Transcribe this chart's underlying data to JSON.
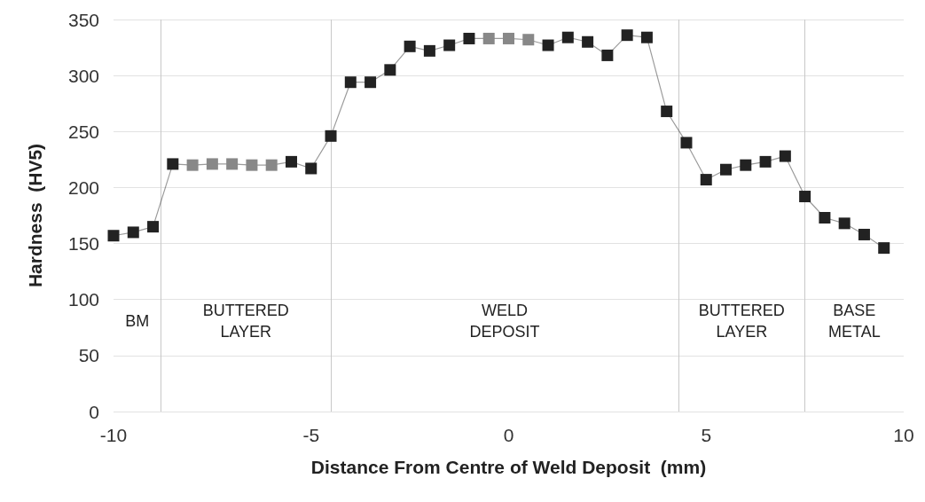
{
  "chart_data": {
    "type": "line",
    "xlabel": "Distance From Centre of Weld Deposit  (mm)",
    "ylabel": "Hardness  (HV5)",
    "x": [
      -10,
      -9.5,
      -9,
      -8.5,
      -8,
      -7.5,
      -7,
      -6.5,
      -6,
      -5.5,
      -5,
      -4.5,
      -4,
      -3.5,
      -3,
      -2.5,
      -2,
      -1.5,
      -1,
      -0.5,
      0,
      0.5,
      1,
      1.5,
      2,
      2.5,
      3,
      3.5,
      4,
      4.5,
      5,
      5.5,
      6,
      6.5,
      7,
      7.5,
      8,
      8.5,
      9,
      9.5
    ],
    "series": [
      {
        "color": "#222222",
        "colors": [
          "#222222",
          "#222222",
          "#222222",
          "#222222",
          "#888888",
          "#888888",
          "#888888",
          "#888888",
          "#888888",
          "#222222",
          "#222222",
          "#222222",
          "#222222",
          "#222222",
          "#222222",
          "#222222",
          "#222222",
          "#222222",
          "#222222",
          "#888888",
          "#888888",
          "#888888",
          "#222222",
          "#222222",
          "#222222",
          "#222222",
          "#222222",
          "#222222",
          "#222222",
          "#222222",
          "#222222",
          "#222222",
          "#222222",
          "#222222",
          "#222222",
          "#222222",
          "#222222",
          "#222222",
          "#222222",
          "#222222"
        ],
        "values": [
          157,
          160,
          165,
          221,
          220,
          221,
          221,
          220,
          220,
          223,
          217,
          246,
          294,
          294,
          305,
          326,
          322,
          327,
          333,
          333,
          333,
          332,
          327,
          334,
          330,
          318,
          336,
          334,
          268,
          240,
          207,
          216,
          220,
          223,
          228,
          192,
          173,
          168,
          158,
          146
        ]
      }
    ],
    "xlim": [
      -10,
      10
    ],
    "xticks": [
      -10,
      -5,
      0,
      5,
      10
    ],
    "ylim": [
      0,
      350
    ],
    "yticks": [
      0,
      50,
      100,
      150,
      200,
      250,
      300,
      350
    ],
    "grid": "y",
    "marker": "square",
    "line_style": "solid",
    "ref_lines": [
      {
        "axis": "x",
        "value": -8.8
      },
      {
        "axis": "x",
        "value": -4.5
      },
      {
        "axis": "x",
        "value": 4.3
      },
      {
        "axis": "x",
        "value": 7.5
      }
    ],
    "annotations": [
      "BM",
      "BUTTERED LAYER",
      "WELD DEPOSIT",
      "BUTTERED LAYER",
      "BASE METAL"
    ]
  }
}
